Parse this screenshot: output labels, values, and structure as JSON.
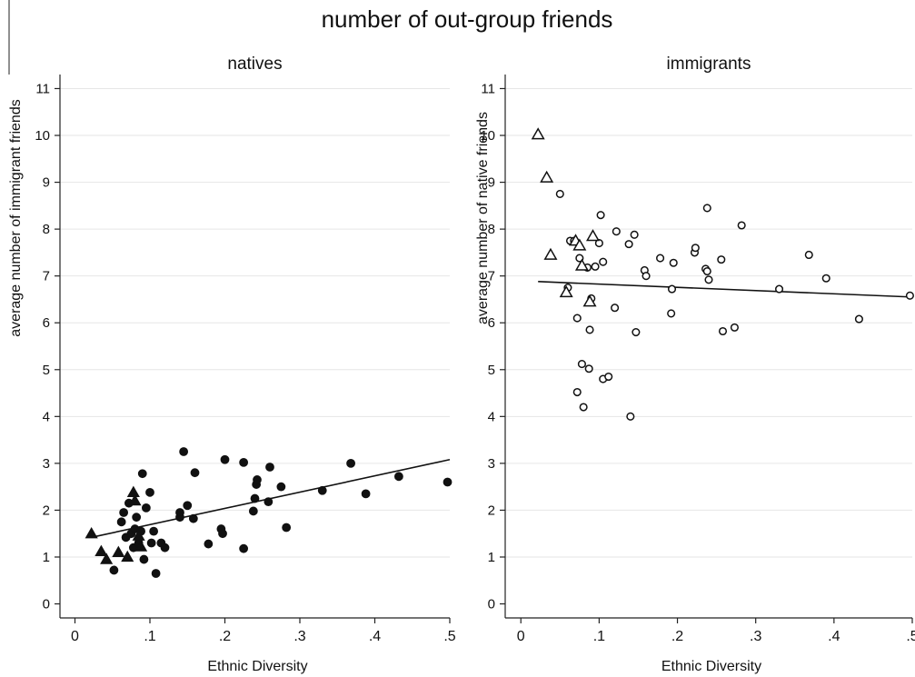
{
  "figure": {
    "title": "number of out-group friends"
  },
  "chart_data": [
    {
      "type": "scatter",
      "title": "natives",
      "xlabel": "Ethnic Diversity",
      "ylabel": "average number of immigrant friends",
      "xlim": [
        -0.02,
        0.5
      ],
      "ylim": [
        -0.3,
        11.3
      ],
      "xticks": [
        0,
        0.1,
        0.2,
        0.3,
        0.4,
        0.5
      ],
      "xtick_labels": [
        "0",
        ".1",
        ".2",
        ".3",
        ".4",
        ".5"
      ],
      "yticks": [
        0,
        1,
        2,
        3,
        4,
        5,
        6,
        7,
        8,
        9,
        10,
        11
      ],
      "ytick_labels": [
        "0",
        "1",
        "2",
        "3",
        "4",
        "5",
        "6",
        "7",
        "8",
        "9",
        "10",
        "11"
      ],
      "grid": true,
      "series": [
        {
          "marker": "filled-circle",
          "points": [
            [
              0.052,
              0.72
            ],
            [
              0.062,
              1.75
            ],
            [
              0.065,
              1.95
            ],
            [
              0.068,
              1.42
            ],
            [
              0.072,
              2.15
            ],
            [
              0.075,
              1.5
            ],
            [
              0.078,
              1.2
            ],
            [
              0.08,
              1.6
            ],
            [
              0.082,
              1.85
            ],
            [
              0.085,
              1.3
            ],
            [
              0.088,
              1.55
            ],
            [
              0.09,
              2.78
            ],
            [
              0.092,
              0.95
            ],
            [
              0.095,
              2.05
            ],
            [
              0.1,
              2.38
            ],
            [
              0.102,
              1.3
            ],
            [
              0.105,
              1.55
            ],
            [
              0.108,
              0.65
            ],
            [
              0.115,
              1.3
            ],
            [
              0.12,
              1.2
            ],
            [
              0.14,
              1.85
            ],
            [
              0.14,
              1.95
            ],
            [
              0.145,
              3.25
            ],
            [
              0.15,
              2.1
            ],
            [
              0.158,
              1.82
            ],
            [
              0.16,
              2.8
            ],
            [
              0.178,
              1.28
            ],
            [
              0.195,
              1.6
            ],
            [
              0.197,
              1.5
            ],
            [
              0.2,
              3.08
            ],
            [
              0.225,
              3.02
            ],
            [
              0.225,
              1.18
            ],
            [
              0.238,
              1.98
            ],
            [
              0.24,
              2.25
            ],
            [
              0.242,
              2.55
            ],
            [
              0.243,
              2.65
            ],
            [
              0.258,
              2.18
            ],
            [
              0.26,
              2.92
            ],
            [
              0.275,
              2.5
            ],
            [
              0.282,
              1.63
            ],
            [
              0.33,
              2.42
            ],
            [
              0.368,
              3.0
            ],
            [
              0.388,
              2.35
            ],
            [
              0.432,
              2.72
            ],
            [
              0.497,
              2.6
            ]
          ]
        },
        {
          "marker": "filled-triangle",
          "points": [
            [
              0.022,
              1.5
            ],
            [
              0.035,
              1.12
            ],
            [
              0.042,
              0.95
            ],
            [
              0.058,
              1.1
            ],
            [
              0.07,
              1.0
            ],
            [
              0.078,
              2.38
            ],
            [
              0.08,
              2.2
            ],
            [
              0.085,
              1.45
            ],
            [
              0.088,
              1.22
            ]
          ]
        }
      ],
      "fit_line": {
        "x": [
          0.022,
          0.5
        ],
        "y": [
          1.42,
          3.08
        ]
      }
    },
    {
      "type": "scatter",
      "title": "immigrants",
      "xlabel": "Ethnic Diversity",
      "ylabel": "average number of native friends",
      "xlim": [
        -0.02,
        0.5
      ],
      "ylim": [
        -0.3,
        11.3
      ],
      "xticks": [
        0,
        0.1,
        0.2,
        0.3,
        0.4,
        0.5
      ],
      "xtick_labels": [
        "0",
        ".1",
        ".2",
        ".3",
        ".4",
        ".5"
      ],
      "yticks": [
        0,
        1,
        2,
        3,
        4,
        5,
        6,
        7,
        8,
        9,
        10,
        11
      ],
      "ytick_labels": [
        "0",
        "1",
        "2",
        "3",
        "4",
        "5",
        "6",
        "7",
        "8",
        "9",
        "10",
        "11"
      ],
      "grid": true,
      "series": [
        {
          "marker": "hollow-circle",
          "points": [
            [
              0.05,
              8.75
            ],
            [
              0.06,
              6.75
            ],
            [
              0.063,
              7.75
            ],
            [
              0.068,
              7.75
            ],
            [
              0.072,
              6.1
            ],
            [
              0.072,
              4.52
            ],
            [
              0.075,
              7.38
            ],
            [
              0.078,
              5.12
            ],
            [
              0.08,
              4.2
            ],
            [
              0.085,
              7.18
            ],
            [
              0.087,
              5.02
            ],
            [
              0.088,
              5.85
            ],
            [
              0.09,
              6.52
            ],
            [
              0.095,
              7.2
            ],
            [
              0.1,
              7.7
            ],
            [
              0.102,
              8.3
            ],
            [
              0.105,
              7.3
            ],
            [
              0.105,
              4.8
            ],
            [
              0.112,
              4.85
            ],
            [
              0.12,
              6.32
            ],
            [
              0.122,
              7.95
            ],
            [
              0.138,
              7.68
            ],
            [
              0.14,
              4.0
            ],
            [
              0.145,
              7.88
            ],
            [
              0.147,
              5.8
            ],
            [
              0.158,
              7.12
            ],
            [
              0.16,
              7.0
            ],
            [
              0.178,
              7.38
            ],
            [
              0.192,
              6.2
            ],
            [
              0.193,
              6.72
            ],
            [
              0.195,
              7.28
            ],
            [
              0.222,
              7.5
            ],
            [
              0.223,
              7.6
            ],
            [
              0.236,
              7.15
            ],
            [
              0.238,
              7.1
            ],
            [
              0.238,
              8.45
            ],
            [
              0.24,
              6.92
            ],
            [
              0.256,
              7.35
            ],
            [
              0.258,
              5.82
            ],
            [
              0.273,
              5.9
            ],
            [
              0.282,
              8.08
            ],
            [
              0.33,
              6.72
            ],
            [
              0.368,
              7.45
            ],
            [
              0.39,
              6.95
            ],
            [
              0.432,
              6.08
            ],
            [
              0.497,
              6.58
            ]
          ]
        },
        {
          "marker": "hollow-triangle",
          "points": [
            [
              0.022,
              10.02
            ],
            [
              0.033,
              9.1
            ],
            [
              0.038,
              7.45
            ],
            [
              0.058,
              6.65
            ],
            [
              0.07,
              7.75
            ],
            [
              0.075,
              7.65
            ],
            [
              0.078,
              7.22
            ],
            [
              0.088,
              6.45
            ],
            [
              0.092,
              7.85
            ]
          ]
        }
      ],
      "fit_line": {
        "x": [
          0.022,
          0.5
        ],
        "y": [
          6.88,
          6.55
        ]
      }
    }
  ]
}
